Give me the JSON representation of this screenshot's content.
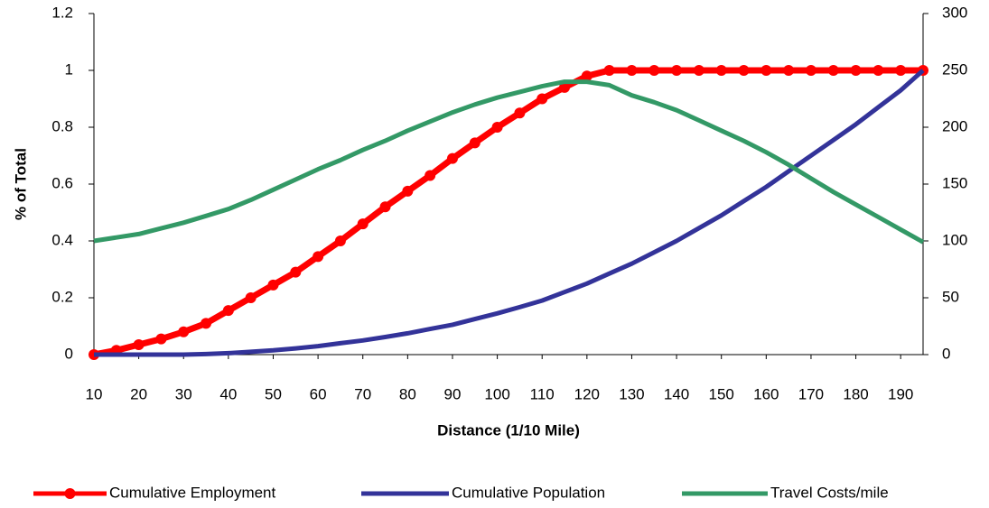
{
  "chart_data": {
    "type": "line",
    "x_label": "Distance (1/10 Mile)",
    "y_label": "% of Total",
    "x": [
      10,
      15,
      20,
      25,
      30,
      35,
      40,
      45,
      50,
      55,
      60,
      65,
      70,
      75,
      80,
      85,
      90,
      95,
      100,
      105,
      110,
      115,
      120,
      125,
      130,
      135,
      140,
      145,
      150,
      155,
      160,
      165,
      170,
      175,
      180,
      185,
      190,
      195
    ],
    "series": [
      {
        "name": "Cumulative Employment",
        "color": "#ff0000",
        "marker": "circle",
        "values": [
          0,
          0.015,
          0.035,
          0.055,
          0.08,
          0.11,
          0.155,
          0.2,
          0.245,
          0.29,
          0.345,
          0.4,
          0.46,
          0.52,
          0.575,
          0.63,
          0.69,
          0.745,
          0.8,
          0.85,
          0.9,
          0.94,
          0.98,
          1,
          1,
          1,
          1,
          1,
          1,
          1,
          1,
          1,
          1,
          1,
          1,
          1,
          1,
          1
        ]
      },
      {
        "name": "Cumulative Population",
        "color": "#333399",
        "values": [
          0,
          0,
          0,
          0,
          0,
          0.002,
          0.005,
          0.01,
          0.015,
          0.022,
          0.03,
          0.04,
          0.05,
          0.062,
          0.075,
          0.09,
          0.105,
          0.125,
          0.145,
          0.167,
          0.19,
          0.22,
          0.25,
          0.285,
          0.32,
          0.36,
          0.4,
          0.445,
          0.49,
          0.54,
          0.59,
          0.645,
          0.7,
          0.755,
          0.81,
          0.87,
          0.93,
          1
        ]
      },
      {
        "name": "Travel Costs/mile",
        "color": "#339966",
        "axis": "y2",
        "values": [
          100,
          103,
          106,
          111,
          116,
          122,
          128,
          136,
          145,
          154,
          163,
          171,
          180,
          188,
          197,
          205,
          213,
          220,
          226,
          231,
          236,
          240,
          240,
          237,
          228,
          222,
          215,
          206,
          197,
          188,
          178,
          167,
          155,
          143,
          132,
          121,
          110,
          99
        ]
      }
    ],
    "xlim": [
      10,
      195
    ],
    "xticks": [
      10,
      20,
      30,
      40,
      50,
      60,
      70,
      80,
      90,
      100,
      110,
      120,
      130,
      140,
      150,
      160,
      170,
      180,
      190
    ],
    "ylim": [
      0,
      1.2
    ],
    "yticks": [
      0,
      0.2,
      0.4,
      0.6,
      0.8,
      1,
      1.2
    ],
    "y2lim": [
      0,
      300
    ],
    "y2ticks": [
      0,
      50,
      100,
      150,
      200,
      250,
      300
    ],
    "grid": false,
    "legend": "bottom"
  }
}
